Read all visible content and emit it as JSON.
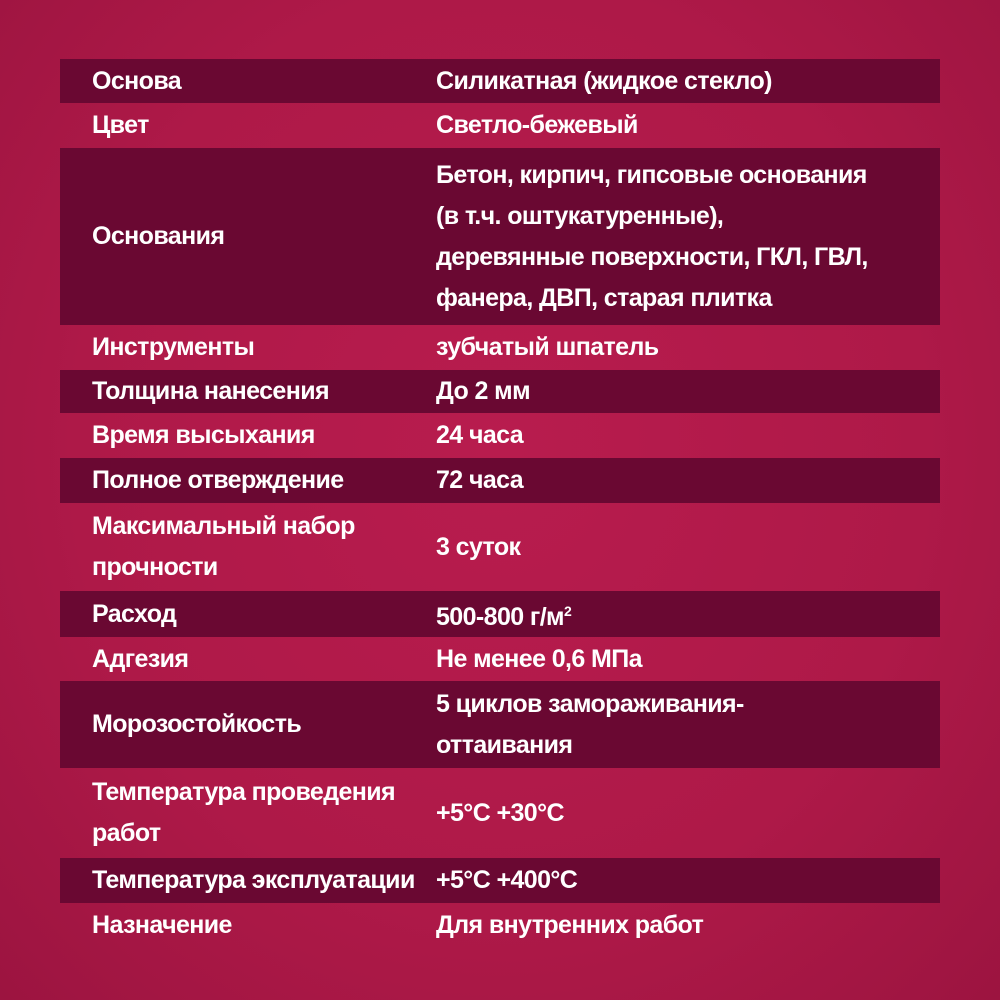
{
  "colors": {
    "background": "#b01a4a",
    "dark_row": "#6a0832",
    "text": "#ffffff"
  },
  "rows": [
    {
      "label": [
        "Основа"
      ],
      "value": [
        "Силикатная (жидкое стекло)"
      ]
    },
    {
      "label": [
        "Цвет"
      ],
      "value": [
        "Светло-бежевый"
      ]
    },
    {
      "label": [
        "Основания"
      ],
      "value": [
        "Бетон, кирпич, гипсовые основания",
        "(в т.ч. оштукатуренные),",
        "деревянные поверхности, ГКЛ, ГВЛ,",
        "фанера, ДВП, старая плитка"
      ]
    },
    {
      "label": [
        "Инструменты"
      ],
      "value": [
        "зубчатый шпатель"
      ]
    },
    {
      "label": [
        "Толщина нанесения"
      ],
      "value": [
        "До 2 мм"
      ]
    },
    {
      "label": [
        "Время высыхания"
      ],
      "value": [
        "24 часа"
      ]
    },
    {
      "label": [
        "Полное отверждение"
      ],
      "value": [
        "72 часа"
      ]
    },
    {
      "label": [
        "Максимальный набор",
        "прочности"
      ],
      "value": [
        "3 суток"
      ]
    },
    {
      "label": [
        "Расход"
      ],
      "value": [
        "500-800 г/м"
      ],
      "value_sup": "2"
    },
    {
      "label": [
        "Адгезия"
      ],
      "value": [
        "Не менее 0,6 МПа"
      ]
    },
    {
      "label": [
        "Морозостойкость"
      ],
      "value": [
        "5 циклов замораживания-",
        "оттаивания"
      ]
    },
    {
      "label": [
        "Температура проведения",
        "работ"
      ],
      "value": [
        "+5°C +30°C"
      ]
    },
    {
      "label": [
        "Температура эксплуатации"
      ],
      "value": [
        "+5°C +400°C"
      ]
    },
    {
      "label": [
        "Назначение"
      ],
      "value": [
        "Для внутренних работ"
      ]
    }
  ]
}
